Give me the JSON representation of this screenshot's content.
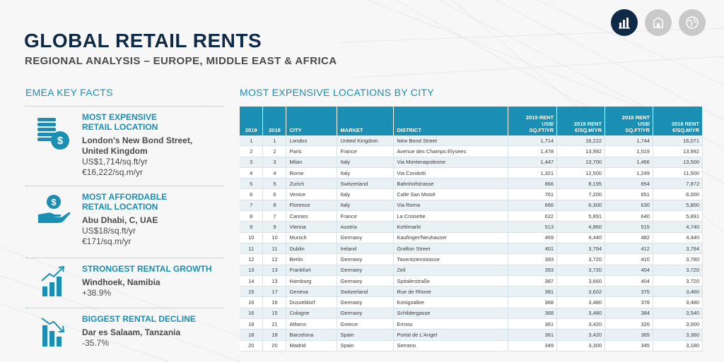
{
  "header": {
    "title": "GLOBAL RETAIL RENTS",
    "subtitle": "REGIONAL ANALYSIS – EUROPE, MIDDLE EAST & AFRICA"
  },
  "nav": [
    {
      "icon": "bar-chart-icon",
      "active": true
    },
    {
      "icon": "building-icon",
      "active": false
    },
    {
      "icon": "globe-icon",
      "active": false
    }
  ],
  "key_facts": {
    "heading": "EMEA KEY FACTS",
    "items": [
      {
        "icon": "coins-icon",
        "title_line1": "MOST EXPENSIVE",
        "title_line2": "RETAIL LOCATION",
        "place_line1": "London's New Bond Street,",
        "place_line2": "United Kingdom",
        "value1": "US$1,714/sq.ft/yr",
        "value2": "€16,222/sq.m/yr"
      },
      {
        "icon": "hand-coin-icon",
        "title_line1": "MOST AFFORDABLE",
        "title_line2": "RETAIL LOCATION",
        "place_line1": "Abu Dhabi, C, UAE",
        "place_line2": "",
        "value1": "US$18/sq.ft/yr",
        "value2": "€171/sq.m/yr"
      },
      {
        "icon": "growth-chart-icon",
        "title_line1": "STRONGEST RENTAL GROWTH",
        "title_line2": "",
        "place_line1": "Windhoek, Namibia",
        "place_line2": "",
        "value1": "+38.9%",
        "value2": ""
      },
      {
        "icon": "decline-chart-icon",
        "title_line1": "BIGGEST RENTAL DECLINE",
        "title_line2": "",
        "place_line1": "Dar es Salaam, Tanzania",
        "place_line2": "",
        "value1": "-35.7%",
        "value2": ""
      }
    ]
  },
  "table": {
    "heading": "MOST EXPENSIVE LOCATIONS BY CITY",
    "columns": [
      "2019",
      "2018",
      "CITY",
      "MARKET",
      "DISTRICT",
      "2019 RENT US$/ SQ.FT/YR",
      "2019 RENT €/SQ.M/YR",
      "2018 RENT US$/ SQ.FT/YR",
      "2018 RENT €/SQ.M/YR"
    ],
    "columns_lines": [
      [
        "2019"
      ],
      [
        "2018"
      ],
      [
        "CITY"
      ],
      [
        "MARKET"
      ],
      [
        "DISTRICT"
      ],
      [
        "2019 RENT",
        "US$/",
        "SQ.FT/YR"
      ],
      [
        "2019 RENT",
        "€/SQ.M/YR"
      ],
      [
        "2018 RENT",
        "US$/",
        "SQ.FT/YR"
      ],
      [
        "2018 RENT",
        "€/SQ.M/YR"
      ]
    ],
    "rows": [
      [
        "1",
        "1",
        "London",
        "United Kingdom",
        "New Bond Street",
        "1,714",
        "16,222",
        "1,744",
        "16,071"
      ],
      [
        "2",
        "2",
        "Paris",
        "France",
        "Avenue des Champs Elysees",
        "1,478",
        "13,992",
        "1,519",
        "13,992"
      ],
      [
        "3",
        "3",
        "Milan",
        "Italy",
        "Via Montenapoleone",
        "1,447",
        "13,700",
        "1,466",
        "13,500"
      ],
      [
        "4",
        "4",
        "Rome",
        "Italy",
        "Via Condotti",
        "1,321",
        "12,500",
        "1,249",
        "11,500"
      ],
      [
        "5",
        "5",
        "Zurich",
        "Switzerland",
        "Bahnhofstrasse",
        "866",
        "8,195",
        "854",
        "7,872"
      ],
      [
        "6",
        "6",
        "Venice",
        "Italy",
        "Calle San Moisè",
        "761",
        "7,200",
        "651",
        "6,000"
      ],
      [
        "7",
        "8",
        "Florence",
        "Italy",
        "Via Roma",
        "666",
        "6,300",
        "630",
        "5,800"
      ],
      [
        "8",
        "7",
        "Cannes",
        "France",
        "La Croisette",
        "622",
        "5,891",
        "640",
        "5,891"
      ],
      [
        "9",
        "9",
        "Vienna",
        "Austria",
        "Kohlmarkt",
        "513",
        "4,860",
        "515",
        "4,740"
      ],
      [
        "10",
        "10",
        "Munich",
        "Germany",
        "Kaufinger/Neuhauser",
        "469",
        "4,440",
        "482",
        "4,440"
      ],
      [
        "11",
        "11",
        "Dublin",
        "Ireland",
        "Grafton Street",
        "401",
        "3,794",
        "412",
        "3,794"
      ],
      [
        "12",
        "12",
        "Berlin",
        "Germany",
        "Tauentzienstrasse",
        "393",
        "3,720",
        "410",
        "3,780"
      ],
      [
        "13",
        "13",
        "Frankfurt",
        "Germany",
        "Zeil",
        "393",
        "3,720",
        "404",
        "3,720"
      ],
      [
        "14",
        "13",
        "Hamburg",
        "Germany",
        "Spitalerstraße",
        "387",
        "3,660",
        "404",
        "3,720"
      ],
      [
        "15",
        "17",
        "Geneva",
        "Switzerland",
        "Rue de Rhone",
        "381",
        "3,602",
        "375",
        "3,460"
      ],
      [
        "16",
        "16",
        "Dusseldorf",
        "Germany",
        "Konigsallee",
        "368",
        "3,480",
        "378",
        "3,480"
      ],
      [
        "16",
        "15",
        "Cologne",
        "Germany",
        "Schildergasse",
        "368",
        "3,480",
        "384",
        "3,540"
      ],
      [
        "18",
        "21",
        "Athens",
        "Greece",
        "Ermou",
        "361",
        "3,420",
        "326",
        "3,000"
      ],
      [
        "18",
        "18",
        "Barcelona",
        "Spain",
        "Portal de L'Angel",
        "361",
        "3,420",
        "365",
        "3,360"
      ],
      [
        "20",
        "20",
        "Madrid",
        "Spain",
        "Serrano",
        "349",
        "3,300",
        "345",
        "3,180"
      ]
    ]
  },
  "colors": {
    "accent": "#1a8fb3",
    "navy": "#0e2a47",
    "text": "#4a4a4a"
  }
}
